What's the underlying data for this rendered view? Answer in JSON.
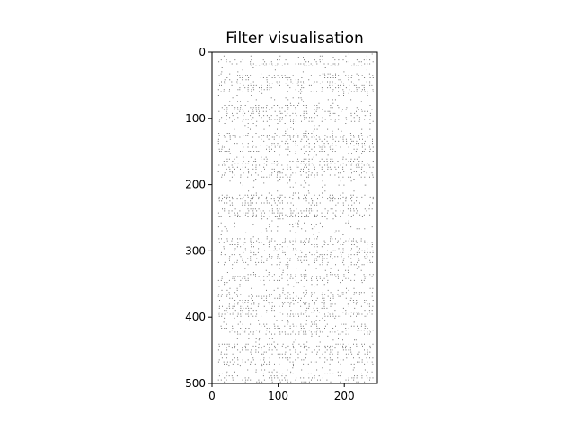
{
  "chart_data": {
    "type": "heatmap",
    "title": "Filter visualisation",
    "xlabel": "",
    "ylabel": "",
    "xlim": [
      0,
      250
    ],
    "ylim": [
      500,
      0
    ],
    "x_ticks": [
      0,
      100,
      200
    ],
    "y_ticks": [
      0,
      100,
      200,
      300,
      400,
      500
    ],
    "x_tick_labels": [
      "0",
      "100",
      "200"
    ],
    "y_tick_labels": [
      "0",
      "100",
      "200",
      "300",
      "400",
      "500"
    ],
    "grid": false,
    "colormap": "gray",
    "background_color": "#ffffff",
    "mark_color": "#000000"
  }
}
